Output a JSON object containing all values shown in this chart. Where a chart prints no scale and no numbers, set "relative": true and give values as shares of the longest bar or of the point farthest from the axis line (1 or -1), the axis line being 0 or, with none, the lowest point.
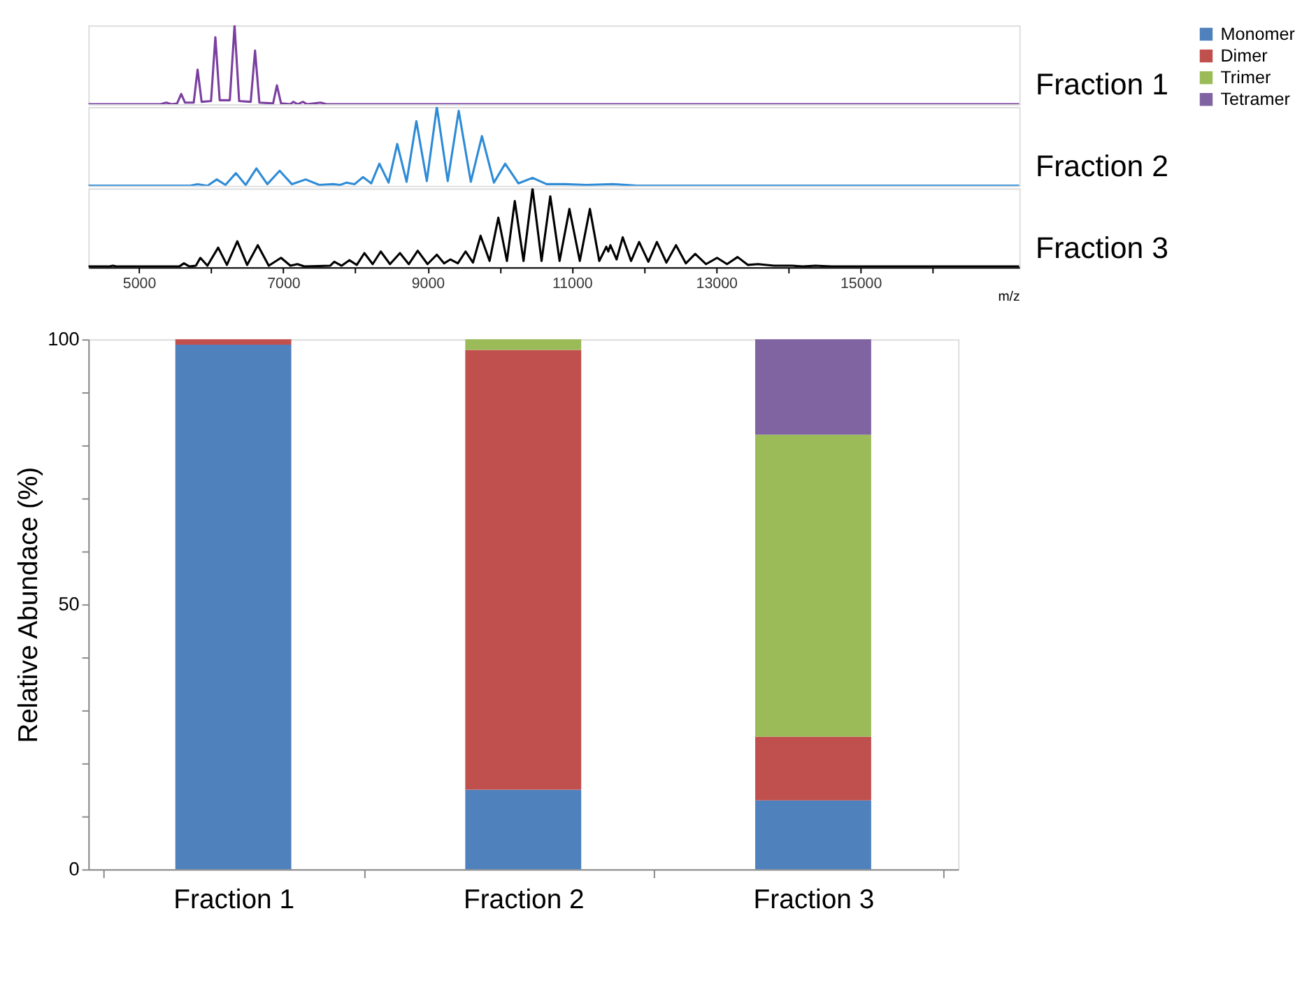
{
  "chart_data": [
    {
      "type": "line",
      "relative": true,
      "xlim": [
        4300,
        17200
      ],
      "tick_labels": false,
      "series": [
        {
          "name": "Fraction 1",
          "color": "#7b3fa0",
          "x": [
            4300,
            5300,
            5379,
            5450,
            5530,
            5587,
            5640,
            5760,
            5814,
            5870,
            6000,
            6060,
            6120,
            6260,
            6326,
            6390,
            6550,
            6610,
            6670,
            6860,
            6913,
            6970,
            7100,
            7140,
            7200,
            7273,
            7330,
            7519,
            7600,
            17200
          ],
          "values": [
            0,
            0,
            0.02,
            0,
            0.01,
            0.13,
            0.02,
            0.02,
            0.44,
            0.03,
            0.04,
            0.85,
            0.05,
            0.05,
            1.0,
            0.04,
            0.03,
            0.68,
            0.02,
            0.01,
            0.24,
            0.01,
            0,
            0.03,
            0,
            0.03,
            0,
            0.02,
            0,
            0
          ]
        }
      ]
    },
    {
      "type": "line",
      "relative": true,
      "xlim": [
        4300,
        17200
      ],
      "tick_labels": false,
      "series": [
        {
          "name": "Fraction 2",
          "color": "#2e8bd6",
          "x": [
            4300,
            5700,
            5814,
            5950,
            6080,
            6200,
            6345,
            6480,
            6629,
            6780,
            6951,
            7120,
            7311,
            7500,
            7689,
            7790,
            7879,
            7990,
            8106,
            8220,
            8333,
            8460,
            8580,
            8710,
            8845,
            8990,
            9129,
            9280,
            9432,
            9600,
            9754,
            9920,
            10076,
            10260,
            10455,
            10650,
            10909,
            11200,
            11572,
            11900,
            17200
          ],
          "values": [
            0,
            0,
            0.02,
            0,
            0.08,
            0.01,
            0.16,
            0.01,
            0.22,
            0.02,
            0.19,
            0.02,
            0.08,
            0.01,
            0.02,
            0.01,
            0.04,
            0.02,
            0.11,
            0.03,
            0.28,
            0.04,
            0.53,
            0.05,
            0.82,
            0.06,
            1.0,
            0.06,
            0.95,
            0.05,
            0.63,
            0.04,
            0.28,
            0.03,
            0.1,
            0.02,
            0.02,
            0.01,
            0.02,
            0,
            0
          ]
        }
      ]
    },
    {
      "type": "line",
      "relative": true,
      "xlim": [
        4300,
        17200
      ],
      "tick_labels": "x",
      "xlabel": "m/z",
      "xticks": [
        5000,
        {
          "value": 6000,
          "label": null
        },
        7000,
        {
          "value": 8000,
          "label": null
        },
        9000,
        {
          "value": 10000,
          "label": null
        },
        11000,
        {
          "value": 12000,
          "label": null
        },
        13000,
        {
          "value": 14000,
          "label": null
        },
        15000,
        {
          "value": 16000,
          "label": null
        }
      ],
      "series": [
        {
          "name": "Fraction 3",
          "color": "#000000",
          "x": [
            4300,
            4580,
            4640,
            4700,
            5560,
            5625,
            5700,
            5790,
            5852,
            5950,
            6099,
            6220,
            6364,
            6500,
            6648,
            6800,
            6970,
            7100,
            7197,
            7300,
            7650,
            7708,
            7810,
            7917,
            8020,
            8125,
            8240,
            8352,
            8480,
            8618,
            8740,
            8864,
            9000,
            9129,
            9230,
            9318,
            9420,
            9527,
            9630,
            9735,
            9860,
            9981,
            10100,
            10209,
            10330,
            10455,
            10580,
            10701,
            10830,
            10966,
            11110,
            11250,
            11380,
            11477,
            11505,
            11534,
            11620,
            11705,
            11820,
            11932,
            12060,
            12178,
            12310,
            12443,
            12580,
            12709,
            12860,
            13012,
            13150,
            13296,
            13440,
            13580,
            13800,
            14053,
            14200,
            14375,
            14600,
            17200
          ],
          "values": [
            0.01,
            0.01,
            0.02,
            0.01,
            0.01,
            0.05,
            0.01,
            0.02,
            0.12,
            0.02,
            0.25,
            0.03,
            0.33,
            0.03,
            0.28,
            0.02,
            0.12,
            0.02,
            0.04,
            0.01,
            0.02,
            0.07,
            0.02,
            0.09,
            0.03,
            0.18,
            0.04,
            0.2,
            0.04,
            0.18,
            0.04,
            0.21,
            0.04,
            0.16,
            0.05,
            0.1,
            0.05,
            0.2,
            0.06,
            0.4,
            0.08,
            0.63,
            0.08,
            0.84,
            0.08,
            1.0,
            0.08,
            0.9,
            0.08,
            0.74,
            0.08,
            0.74,
            0.08,
            0.26,
            0.2,
            0.28,
            0.1,
            0.38,
            0.08,
            0.32,
            0.07,
            0.32,
            0.06,
            0.28,
            0.05,
            0.17,
            0.04,
            0.12,
            0.04,
            0.13,
            0.03,
            0.04,
            0.02,
            0.02,
            0.01,
            0.02,
            0.01,
            0.01
          ]
        }
      ]
    },
    {
      "type": "bar",
      "stacked": true,
      "ylabel": "Relative Abundace (%)",
      "legend": "right",
      "categories": [
        "Fraction 1",
        "Fraction 2",
        "Fraction 3"
      ],
      "ylim": [
        0,
        100
      ],
      "yticks": [
        0,
        {
          "value": 10,
          "label": null
        },
        {
          "value": 20,
          "label": null
        },
        {
          "value": 30,
          "label": null
        },
        {
          "value": 40,
          "label": null
        },
        50,
        {
          "value": 60,
          "label": null
        },
        {
          "value": 70,
          "label": null
        },
        {
          "value": 80,
          "label": null
        },
        {
          "value": 90,
          "label": null
        },
        100
      ],
      "series": [
        {
          "name": "Monomer",
          "color": "#4f81bd",
          "values": [
            99,
            15,
            13
          ]
        },
        {
          "name": "Dimer",
          "color": "#c0504d",
          "values": [
            1,
            83,
            12
          ]
        },
        {
          "name": "Trimer",
          "color": "#9bbb59",
          "values": [
            0,
            2,
            57
          ]
        },
        {
          "name": "Tetramer",
          "color": "#8064a2",
          "values": [
            0,
            0,
            18
          ]
        }
      ]
    }
  ]
}
